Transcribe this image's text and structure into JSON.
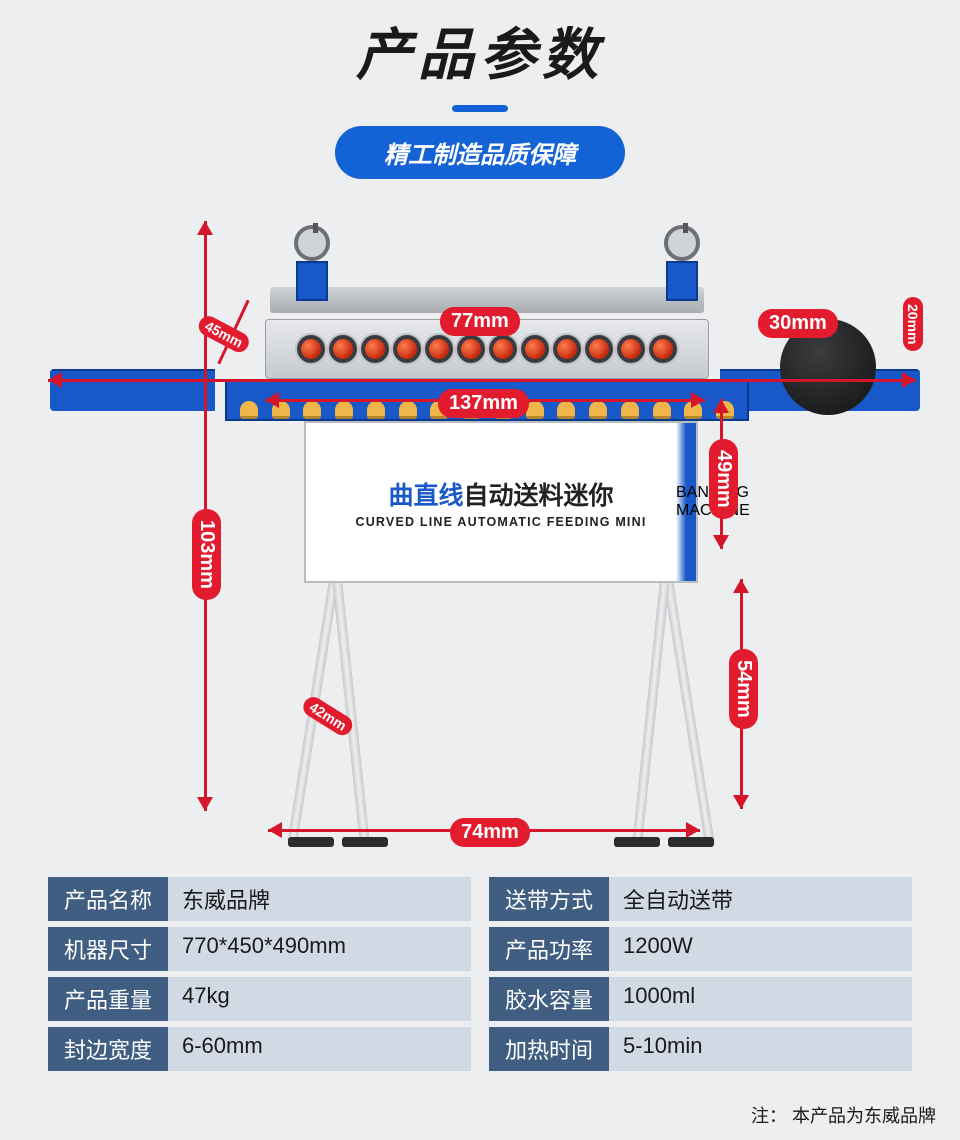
{
  "header": {
    "title": "产品参数",
    "subtitle": "精工制造品质保障"
  },
  "colors": {
    "accent": "#1463d6",
    "dim_red": "#e21b2f",
    "bg": "#edeef0",
    "table_key_bg": "#3f5e82",
    "table_val_bg": "#d0d9e4"
  },
  "machine": {
    "name_cn_bold": "曲直线",
    "name_cn_rest": "自动送料迷你",
    "name_en": "CURVED LINE AUTOMATIC FEEDING MINI",
    "side_label": "BANDING MACHINE",
    "roller_count": 12,
    "cone_count": 16
  },
  "dimensions": {
    "d77": "77mm",
    "d137": "137mm",
    "d30": "30mm",
    "d20": "20mm",
    "d45": "45mm",
    "d103": "103mm",
    "d49": "49mm",
    "d54": "54mm",
    "d42": "42mm",
    "d74": "74mm"
  },
  "specs_left": [
    {
      "k": "产品名称",
      "v": "东威品牌"
    },
    {
      "k": "机器尺寸",
      "v": "770*450*490mm"
    },
    {
      "k": "产品重量",
      "v": "47kg"
    },
    {
      "k": "封边宽度",
      "v": "6-60mm"
    }
  ],
  "specs_right": [
    {
      "k": "送带方式",
      "v": "全自动送带"
    },
    {
      "k": "产品功率",
      "v": "1200W"
    },
    {
      "k": "胶水容量",
      "v": "1000ml"
    },
    {
      "k": "加热时间",
      "v": "5-10min"
    }
  ],
  "note": "注： 本产品为东威品牌"
}
